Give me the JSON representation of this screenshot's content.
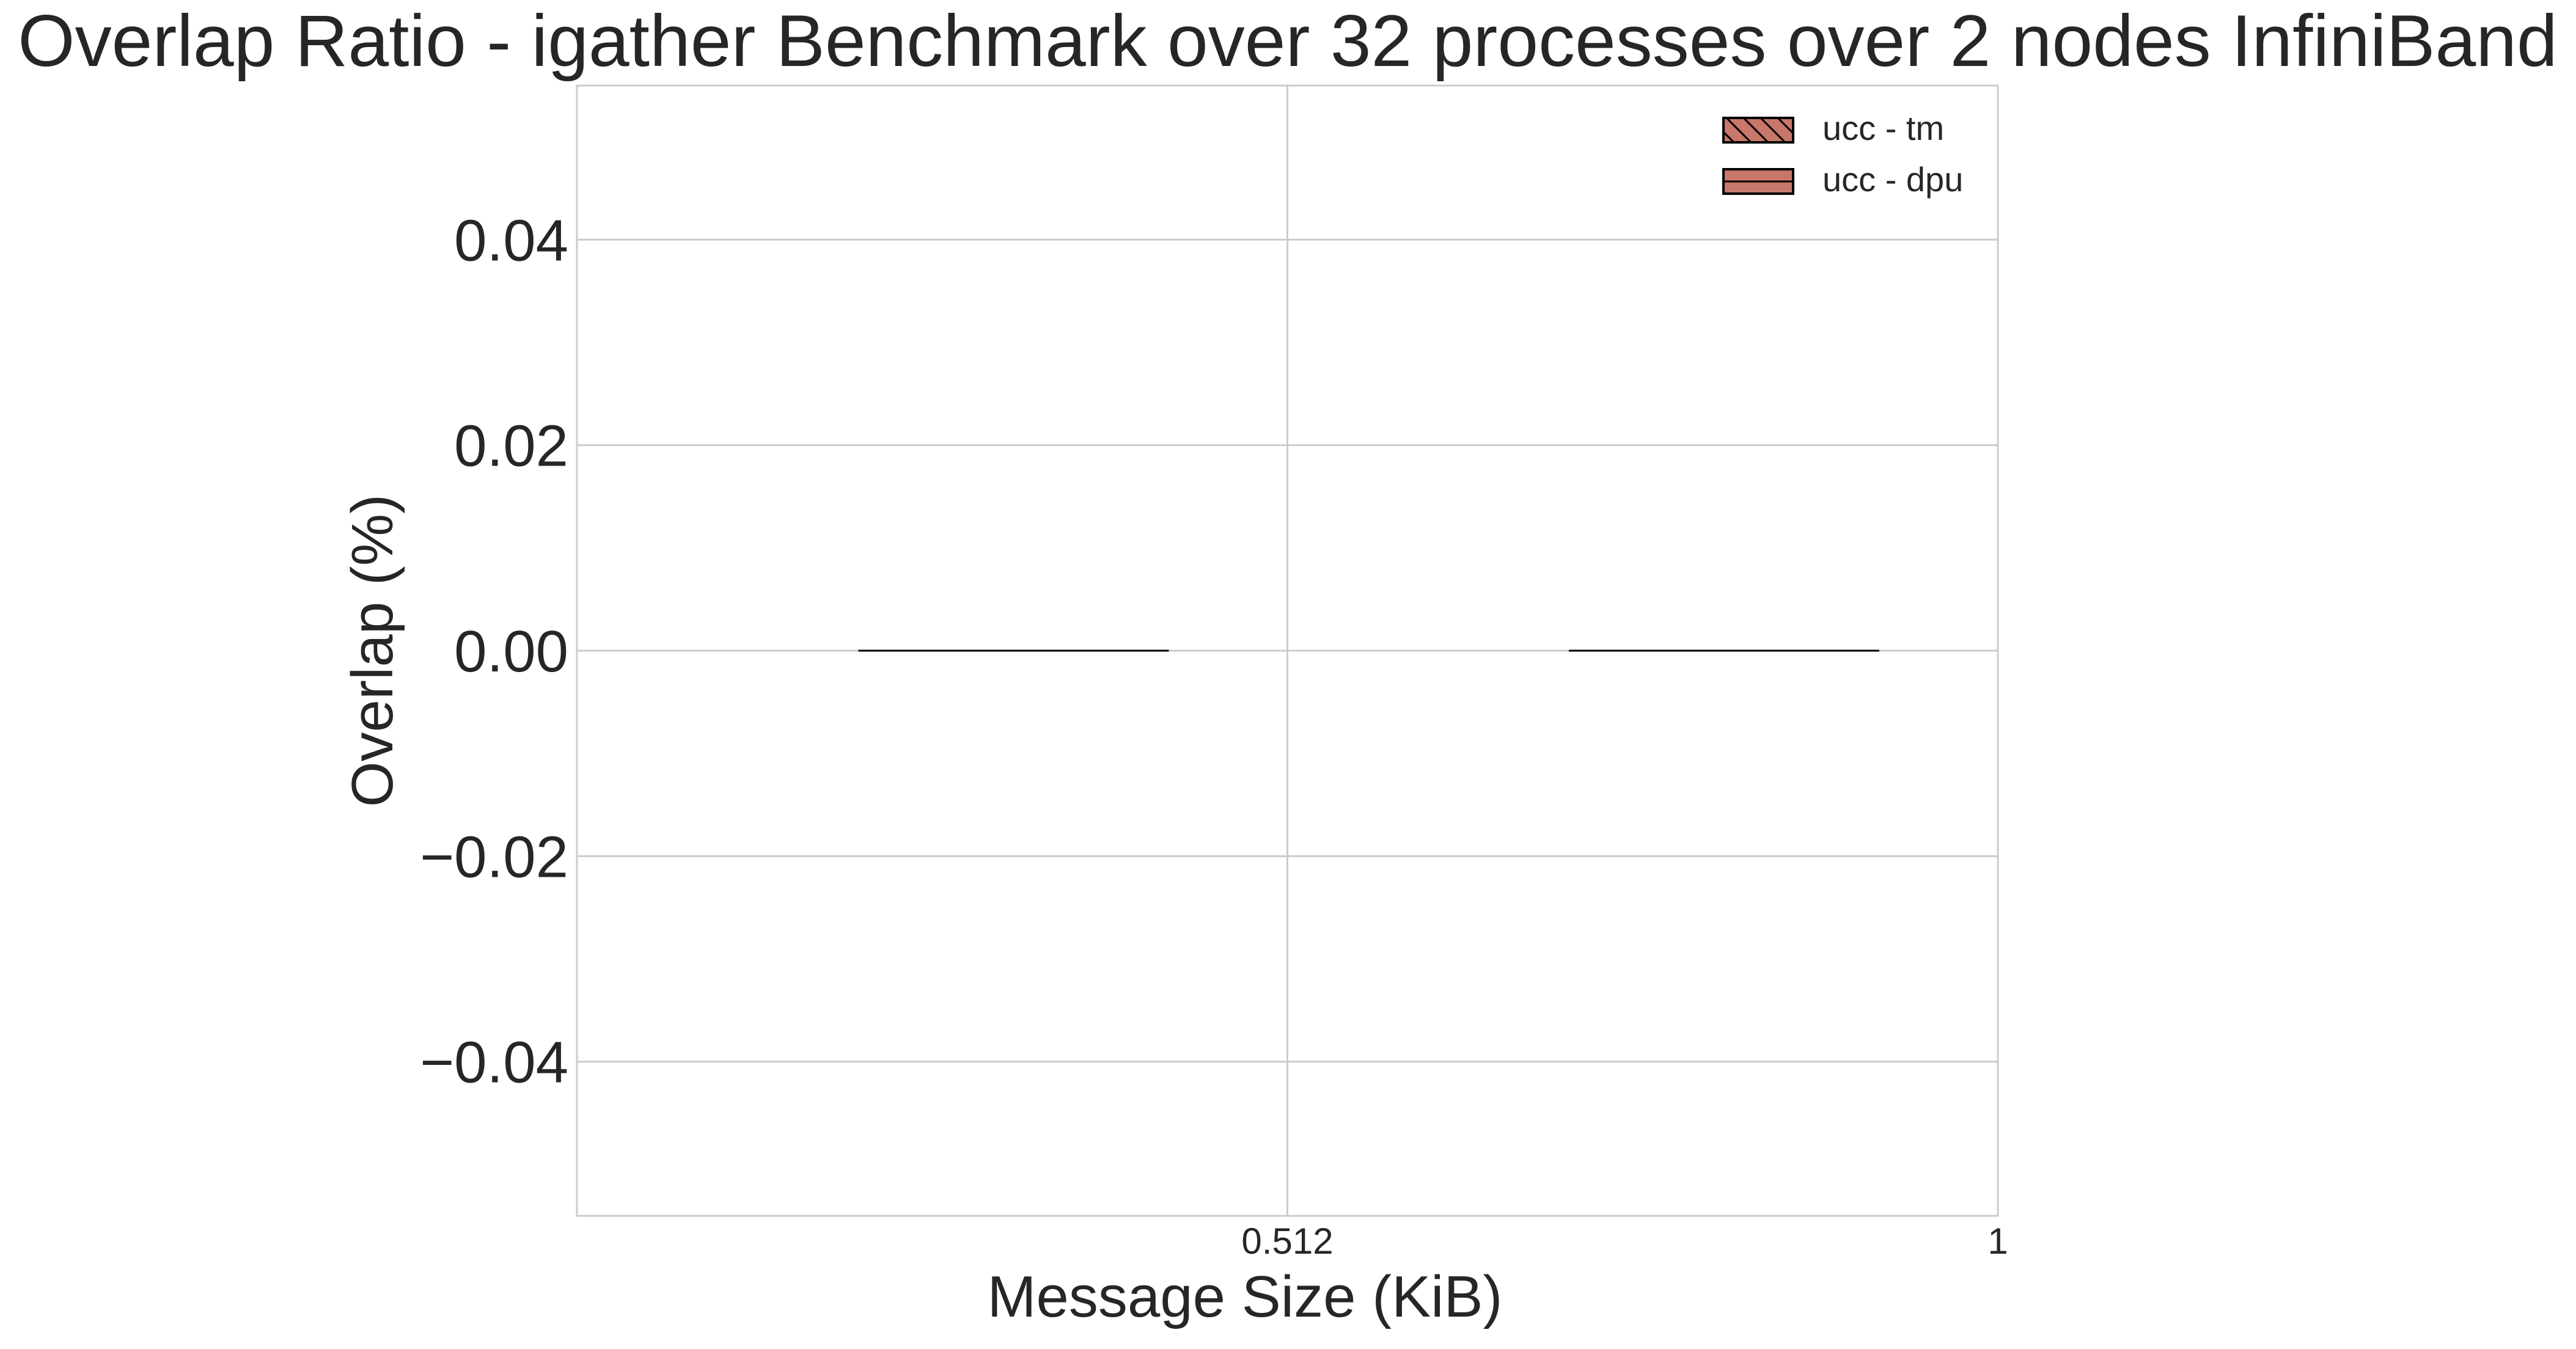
{
  "chart_data": {
    "type": "bar",
    "title": "Overlap Ratio - igather Benchmark over 32 processes over 2 nodes InfiniBand",
    "xlabel": "Message Size (KiB)",
    "ylabel": "Overlap (%)",
    "categories": [
      "0.512",
      "1"
    ],
    "ylim": [
      -0.055,
      0.055
    ],
    "yticks": [
      -0.04,
      -0.02,
      0.0,
      0.02,
      0.04
    ],
    "ytick_labels": [
      "−0.04",
      "−0.02",
      "0.00",
      "0.02",
      "0.04"
    ],
    "grid": true,
    "legend_position": "top-right",
    "series": [
      {
        "name": "ucc - tm",
        "values": [
          0.0,
          0.0
        ],
        "color": "#c8776b",
        "hatch": "diagonal"
      },
      {
        "name": "ucc - dpu",
        "values": [
          0.0,
          0.0
        ],
        "color": "#c8776b",
        "hatch": "horizontal"
      }
    ]
  }
}
